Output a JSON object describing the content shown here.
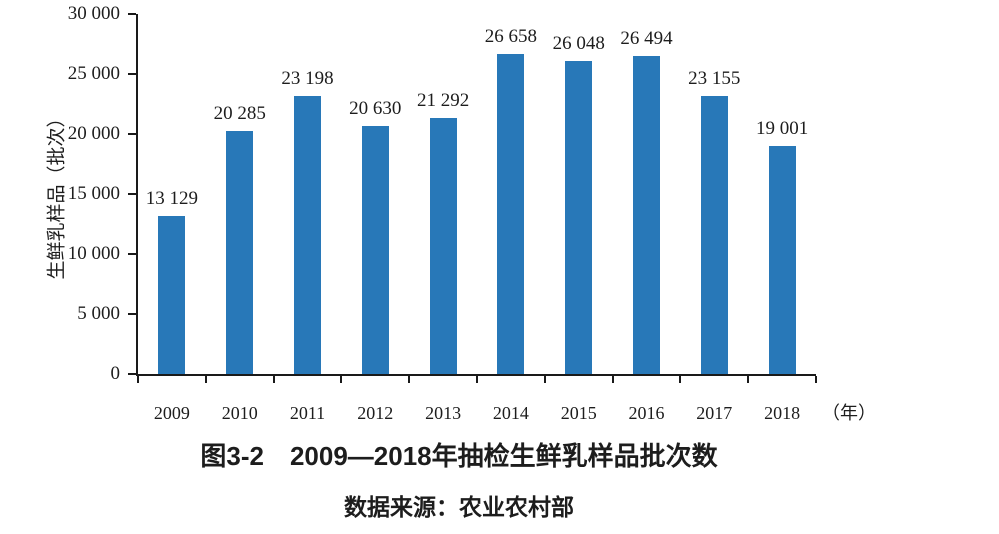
{
  "chart_data": {
    "type": "bar",
    "title": "图3-2　2009—2018年抽检生鲜乳样品批次数",
    "source": "数据来源：农业农村部",
    "y_axis_title": "生鲜乳样品（批次）",
    "x_axis_unit": "（年）",
    "categories": [
      "2009",
      "2010",
      "2011",
      "2012",
      "2013",
      "2014",
      "2015",
      "2016",
      "2017",
      "2018"
    ],
    "values": [
      13129,
      20285,
      23198,
      20630,
      21292,
      26658,
      26048,
      26494,
      23155,
      19001
    ],
    "value_labels": [
      "13 129",
      "20 285",
      "23 198",
      "20 630",
      "21 292",
      "26 658",
      "26 048",
      "26 494",
      "23 155",
      "19 001"
    ],
    "y_ticks": [
      {
        "label": "0",
        "value": 0
      },
      {
        "label": "5 000",
        "value": 5000
      },
      {
        "label": "10 000",
        "value": 10000
      },
      {
        "label": "15 000",
        "value": 15000
      },
      {
        "label": "20 000",
        "value": 20000
      },
      {
        "label": "25 000",
        "value": 25000
      },
      {
        "label": "30 000",
        "value": 30000
      }
    ],
    "ylim": [
      0,
      30000
    ],
    "grid": "off",
    "legend": "none",
    "bar_color": "#2878b8",
    "axis_color": "#1a1a1a",
    "text_color": "#1d1d1d"
  },
  "caption": {
    "title": "图3-2　2009—2018年抽检生鲜乳样品批次数",
    "source": "数据来源：农业农村部"
  }
}
